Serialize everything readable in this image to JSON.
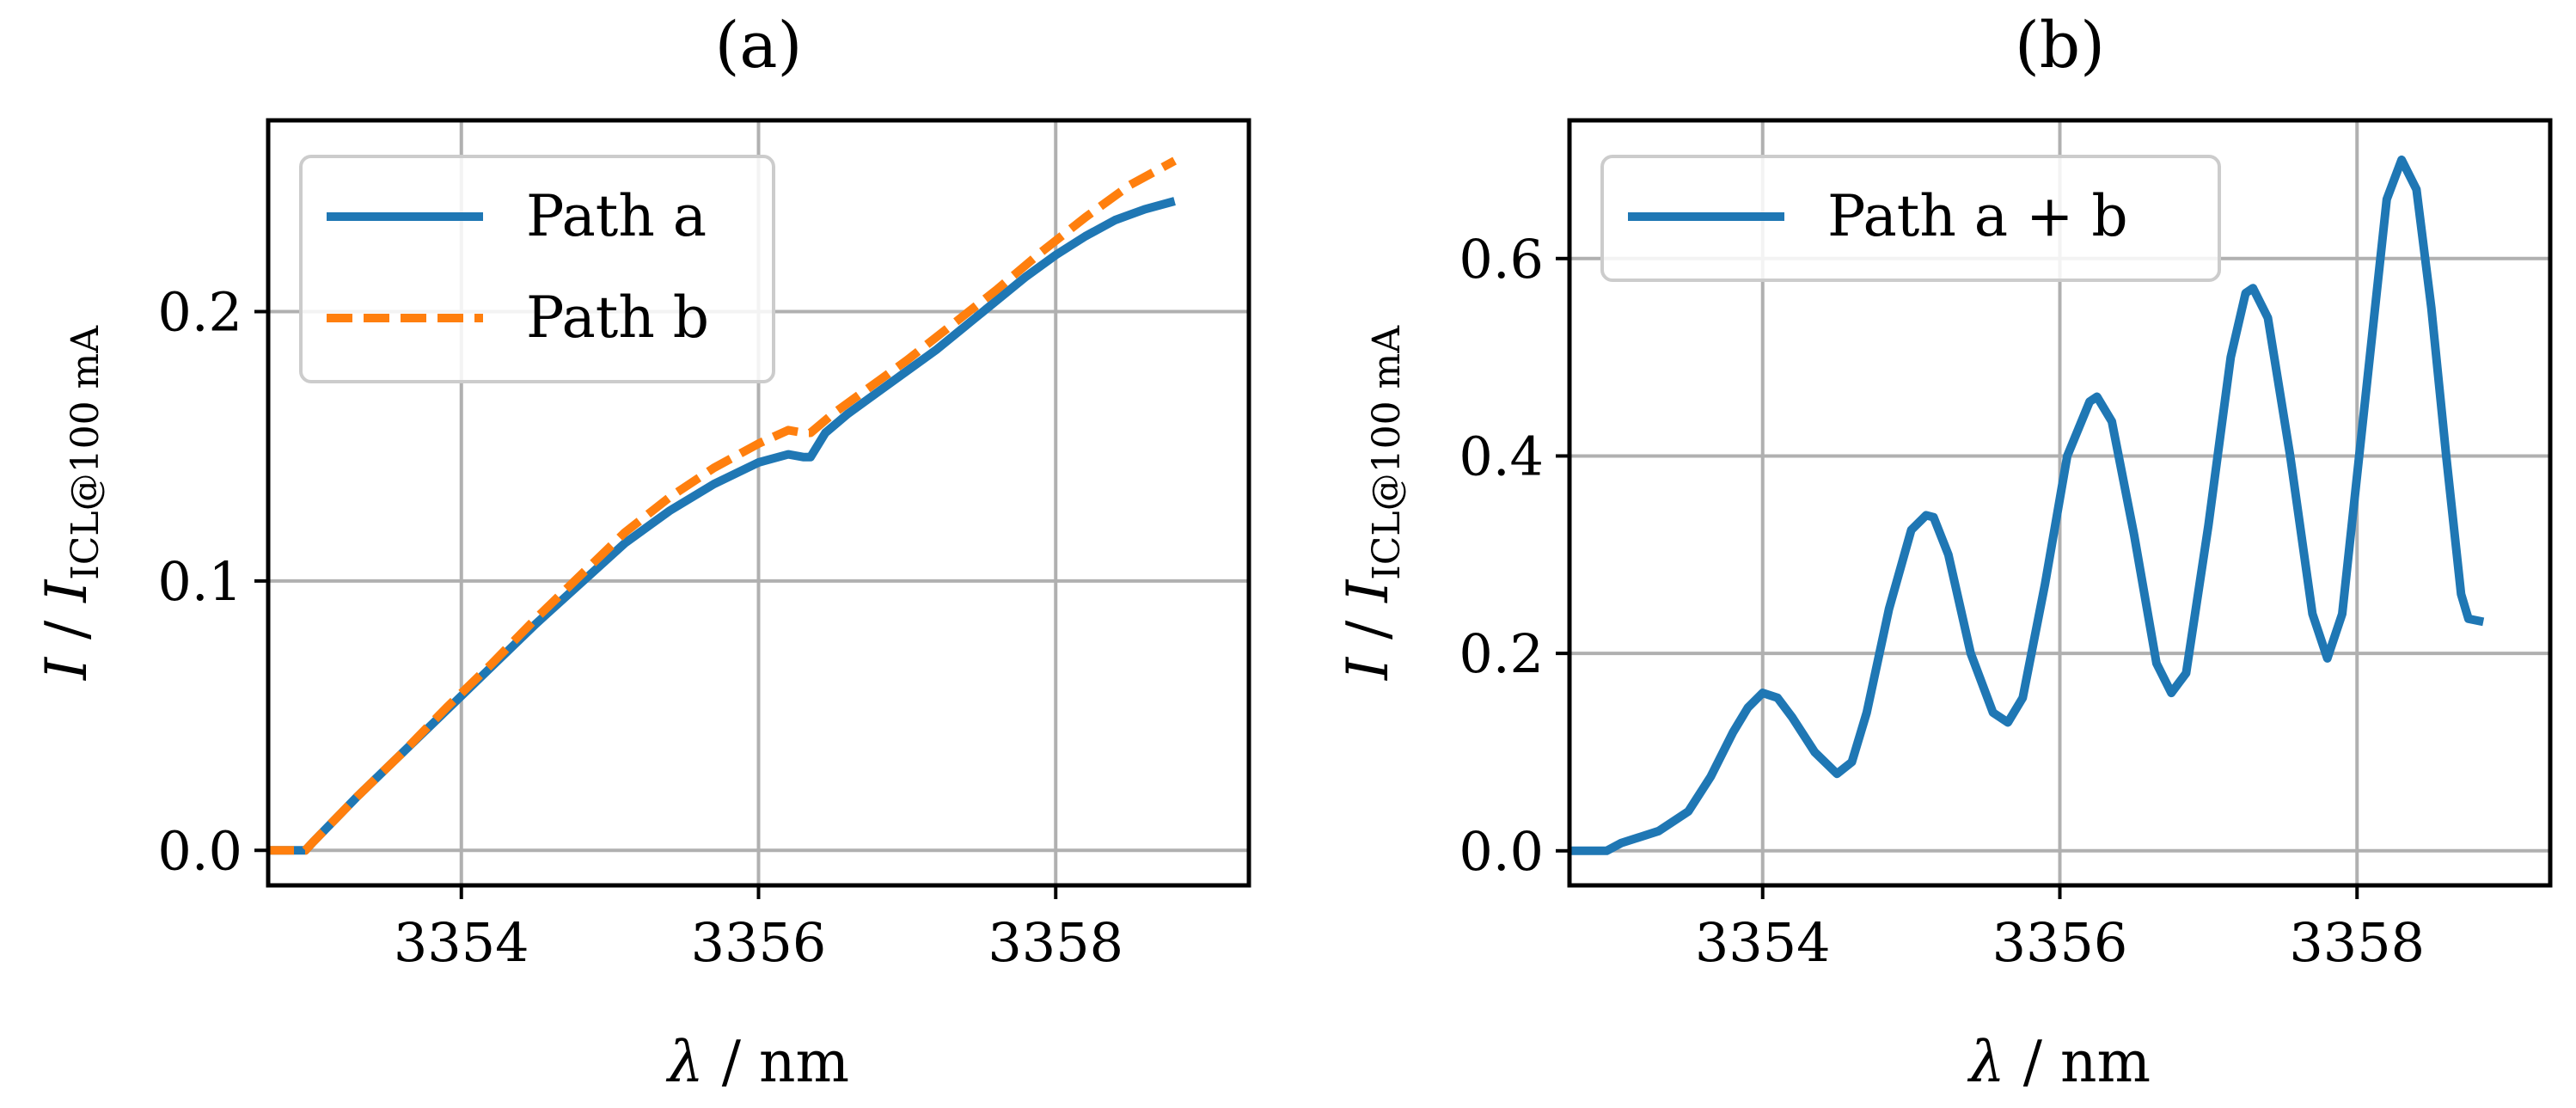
{
  "chart_data": [
    {
      "type": "line",
      "title": "(a)",
      "xlabel_var": "λ",
      "xlabel_unit": "/ nm",
      "ylabel_var": "I",
      "ylabel_mid": "/",
      "ylabel_var2": "I",
      "ylabel_sub": "ICL@100 mA",
      "xlim": [
        3352.7,
        3359.3
      ],
      "ylim": [
        -0.013,
        0.271
      ],
      "xticks": [
        3354,
        3356,
        3358
      ],
      "xtick_labels": [
        "3354",
        "3356",
        "3358"
      ],
      "yticks": [
        0.0,
        0.1,
        0.2
      ],
      "ytick_labels": [
        "0.0",
        "0.1",
        "0.2"
      ],
      "grid": true,
      "legend_position": "top-left",
      "series": [
        {
          "name": "Path a",
          "color": "#1f77b4",
          "style": "solid",
          "x": [
            3352.7,
            3352.95,
            3353.0,
            3353.3,
            3353.6,
            3353.9,
            3354.2,
            3354.5,
            3354.8,
            3355.1,
            3355.4,
            3355.7,
            3356.0,
            3356.2,
            3356.3,
            3356.35,
            3356.45,
            3356.6,
            3356.8,
            3357.0,
            3357.2,
            3357.4,
            3357.6,
            3357.8,
            3358.0,
            3358.2,
            3358.4,
            3358.6,
            3358.8
          ],
          "y": [
            0.0,
            0.0,
            0.003,
            0.02,
            0.036,
            0.052,
            0.068,
            0.084,
            0.099,
            0.114,
            0.126,
            0.136,
            0.144,
            0.147,
            0.146,
            0.146,
            0.155,
            0.162,
            0.17,
            0.178,
            0.186,
            0.195,
            0.204,
            0.213,
            0.221,
            0.228,
            0.234,
            0.238,
            0.241
          ]
        },
        {
          "name": "Path b",
          "color": "#ff7f0e",
          "style": "dashed",
          "x": [
            3352.7,
            3352.95,
            3353.0,
            3353.3,
            3353.6,
            3353.9,
            3354.2,
            3354.5,
            3354.8,
            3355.1,
            3355.4,
            3355.7,
            3356.0,
            3356.2,
            3356.3,
            3356.35,
            3356.5,
            3356.8,
            3357.0,
            3357.3,
            3357.6,
            3357.9,
            3358.2,
            3358.5,
            3358.8
          ],
          "y": [
            0.0,
            0.0,
            0.003,
            0.02,
            0.036,
            0.053,
            0.069,
            0.086,
            0.102,
            0.118,
            0.131,
            0.142,
            0.151,
            0.156,
            0.155,
            0.155,
            0.162,
            0.174,
            0.182,
            0.195,
            0.208,
            0.222,
            0.235,
            0.247,
            0.256
          ]
        }
      ]
    },
    {
      "type": "line",
      "title": "(b)",
      "xlabel_var": "λ",
      "xlabel_unit": "/ nm",
      "ylabel_var": "I",
      "ylabel_mid": "/",
      "ylabel_var2": "I",
      "ylabel_sub": "ICL@100 mA",
      "xlim": [
        3352.7,
        3359.3
      ],
      "ylim": [
        -0.035,
        0.74
      ],
      "xticks": [
        3354,
        3356,
        3358
      ],
      "xtick_labels": [
        "3354",
        "3356",
        "3358"
      ],
      "yticks": [
        0.0,
        0.2,
        0.4,
        0.6
      ],
      "ytick_labels": [
        "0.0",
        "0.2",
        "0.4",
        "0.6"
      ],
      "grid": true,
      "legend_position": "top-left",
      "series": [
        {
          "name": "Path a + b",
          "color": "#1f77b4",
          "style": "solid",
          "x": [
            3352.7,
            3352.95,
            3353.05,
            3353.3,
            3353.5,
            3353.65,
            3353.8,
            3353.9,
            3354.0,
            3354.1,
            3354.2,
            3354.35,
            3354.5,
            3354.6,
            3354.7,
            3354.85,
            3355.0,
            3355.1,
            3355.15,
            3355.25,
            3355.4,
            3355.55,
            3355.65,
            3355.75,
            3355.9,
            3356.05,
            3356.2,
            3356.25,
            3356.35,
            3356.5,
            3356.65,
            3356.75,
            3356.85,
            3357.0,
            3357.15,
            3357.25,
            3357.3,
            3357.4,
            3357.55,
            3357.7,
            3357.8,
            3357.9,
            3358.05,
            3358.2,
            3358.3,
            3358.4,
            3358.5,
            3358.6,
            3358.7,
            3358.75,
            3358.85
          ],
          "y": [
            0.0,
            0.0,
            0.008,
            0.02,
            0.04,
            0.075,
            0.12,
            0.145,
            0.16,
            0.155,
            0.135,
            0.1,
            0.078,
            0.09,
            0.14,
            0.245,
            0.325,
            0.34,
            0.338,
            0.3,
            0.2,
            0.14,
            0.13,
            0.155,
            0.27,
            0.4,
            0.455,
            0.46,
            0.435,
            0.32,
            0.19,
            0.16,
            0.18,
            0.33,
            0.5,
            0.565,
            0.57,
            0.54,
            0.4,
            0.24,
            0.195,
            0.24,
            0.45,
            0.66,
            0.7,
            0.67,
            0.55,
            0.4,
            0.26,
            0.235,
            0.232
          ]
        }
      ]
    }
  ]
}
